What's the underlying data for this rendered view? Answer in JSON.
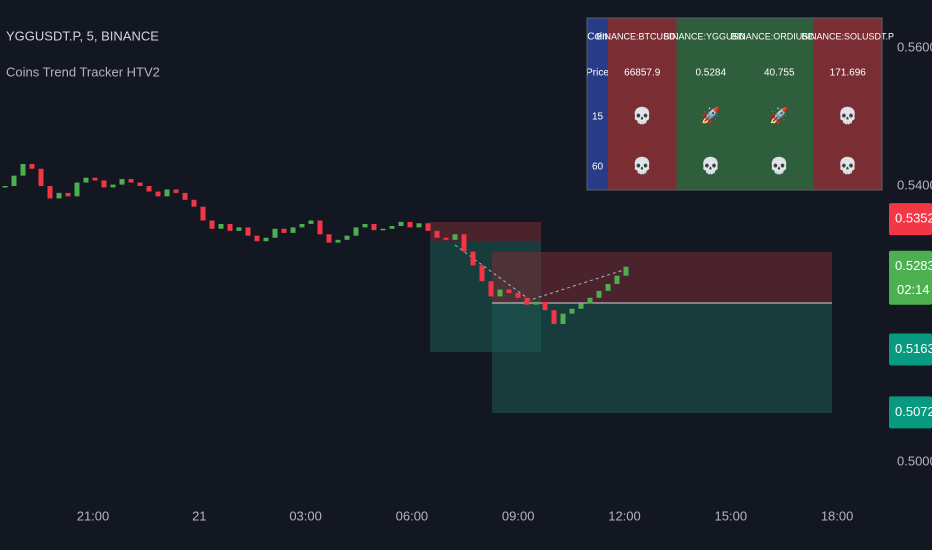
{
  "header": {
    "symbol": "YGGUSDT.P, 5, BINANCE",
    "indicator": "Coins Trend Tracker HTV2"
  },
  "table": {
    "row_labels": [
      "Coin",
      "Price",
      "15",
      "60"
    ],
    "columns": [
      {
        "coin": "BINANCE:BTCUSDT.P",
        "price": "66857.9",
        "tf15": "💀",
        "tf60": "💀",
        "color": "#7a2e34"
      },
      {
        "coin": "BINANCE:YGGUSDT.P",
        "price": "0.5284",
        "tf15": "🚀",
        "tf60": "💀",
        "color": "#2e5e3b"
      },
      {
        "coin": "BINANCE:ORDIUSDT.P",
        "price": "40.755",
        "tf15": "🚀",
        "tf60": "💀",
        "color": "#2e5e3b"
      },
      {
        "coin": "BINANCE:SOLUSDT.P",
        "price": "171.696",
        "tf15": "💀",
        "tf60": "💀",
        "color": "#7a2e34"
      }
    ]
  },
  "chart": {
    "type": "candlestick",
    "up_color": "#4caf50",
    "down_color": "#f23645",
    "values": [
      0.54,
      0.5415,
      0.5432,
      0.5425,
      0.54,
      0.5382,
      0.539,
      0.5385,
      0.5405,
      0.5412,
      0.5408,
      0.5398,
      0.5402,
      0.541,
      0.5405,
      0.54,
      0.5392,
      0.5385,
      0.5395,
      0.539,
      0.538,
      0.537,
      0.535,
      0.5338,
      0.5345,
      0.5335,
      0.534,
      0.5328,
      0.532,
      0.5325,
      0.5338,
      0.5332,
      0.534,
      0.5345,
      0.535,
      0.533,
      0.5318,
      0.5322,
      0.5328,
      0.534,
      0.5345,
      0.5336,
      0.5338,
      0.5342,
      0.5348,
      0.534,
      0.5346,
      0.5335,
      0.5325,
      0.5322,
      0.533,
      0.5305,
      0.5285,
      0.5262,
      0.524,
      0.525,
      0.5245,
      0.5238,
      0.5228,
      0.5232,
      0.522,
      0.52,
      0.5215,
      0.5222,
      0.523,
      0.5238,
      0.5248,
      0.5258,
      0.527,
      0.5283
    ]
  },
  "price_axis": {
    "ticks": [
      {
        "value": 0.56,
        "label": "0.5600"
      },
      {
        "value": 0.54,
        "label": "0.5400"
      },
      {
        "value": 0.5,
        "label": "0.5000"
      }
    ],
    "badges": [
      {
        "value": 0.5352,
        "label": "0.5352",
        "color": "#f23645"
      },
      {
        "value": 0.5283,
        "label": "0.5283",
        "color": "#4caf50"
      },
      {
        "value": 0.5163,
        "label": "0.5163",
        "color": "#089981"
      },
      {
        "value": 0.5072,
        "label": "0.5072",
        "color": "#089981"
      }
    ],
    "countdown": "02:14"
  },
  "time_axis": [
    "21:00",
    "21",
    "03:00",
    "06:00",
    "09:00",
    "12:00",
    "15:00",
    "18:00"
  ]
}
